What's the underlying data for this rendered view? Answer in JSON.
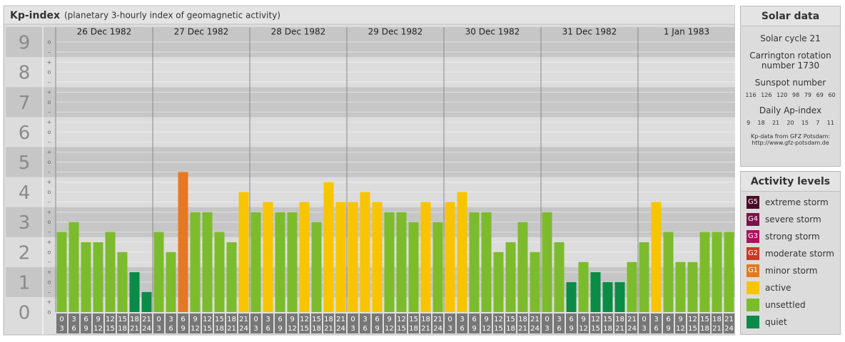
{
  "header": {
    "title": "Kp-index",
    "subtitle": "(planetary 3-hourly index of geomagnetic activity)"
  },
  "chart_data": {
    "type": "bar",
    "days": [
      "26 Dec 1982",
      "27 Dec 1982",
      "28 Dec 1982",
      "29 Dec 1982",
      "30 Dec 1982",
      "31 Dec 1982",
      "1 Jan 1983"
    ],
    "hours": [
      [
        "0",
        "3"
      ],
      [
        "3",
        "6"
      ],
      [
        "6",
        "9"
      ],
      [
        "9",
        "12"
      ],
      [
        "12",
        "15"
      ],
      [
        "15",
        "18"
      ],
      [
        "18",
        "21"
      ],
      [
        "21",
        "24"
      ]
    ],
    "values": [
      2.67,
      3,
      2.33,
      2.33,
      2.67,
      2,
      1.33,
      0.67,
      2.67,
      2,
      4.67,
      3.33,
      3.33,
      2.67,
      2.33,
      4,
      3.33,
      3.67,
      3.33,
      3.33,
      3.67,
      3,
      4.33,
      3.67,
      3.67,
      4,
      3.67,
      3.33,
      3.33,
      3,
      3.67,
      3,
      3.67,
      4,
      3.33,
      3.33,
      2,
      2.33,
      3,
      2,
      3.33,
      2.33,
      1,
      1.67,
      1.33,
      1,
      1,
      1.67,
      2.33,
      3.67,
      2.67,
      1.67,
      1.67,
      2.67,
      2.67,
      2.67
    ],
    "colors": [
      "#7cbc2c",
      "#7cbc2c",
      "#7cbc2c",
      "#7cbc2c",
      "#7cbc2c",
      "#7cbc2c",
      "#0b8c46",
      "#0b8c46",
      "#7cbc2c",
      "#7cbc2c",
      "#e87722",
      "#7cbc2c",
      "#7cbc2c",
      "#7cbc2c",
      "#7cbc2c",
      "#f8c400",
      "#7cbc2c",
      "#f8c400",
      "#7cbc2c",
      "#7cbc2c",
      "#f8c400",
      "#7cbc2c",
      "#f8c400",
      "#f8c400",
      "#f8c400",
      "#f8c400",
      "#f8c400",
      "#7cbc2c",
      "#7cbc2c",
      "#7cbc2c",
      "#f8c400",
      "#7cbc2c",
      "#f8c400",
      "#f8c400",
      "#7cbc2c",
      "#7cbc2c",
      "#7cbc2c",
      "#7cbc2c",
      "#7cbc2c",
      "#7cbc2c",
      "#7cbc2c",
      "#7cbc2c",
      "#0b8c46",
      "#7cbc2c",
      "#0b8c46",
      "#0b8c46",
      "#0b8c46",
      "#7cbc2c",
      "#7cbc2c",
      "#f8c400",
      "#7cbc2c",
      "#7cbc2c",
      "#7cbc2c",
      "#7cbc2c",
      "#7cbc2c",
      "#7cbc2c"
    ],
    "ylim": [
      0,
      9.5
    ],
    "yticks": [
      0,
      1,
      2,
      3,
      4,
      5,
      6,
      7,
      8,
      9
    ],
    "minor_ticks": [
      {
        "value": 0,
        "label": "o"
      },
      {
        "value": 0.33,
        "label": "+"
      },
      {
        "value": 0.67,
        "label": "–"
      },
      {
        "value": 1,
        "label": "o"
      },
      {
        "value": 1.33,
        "label": "+"
      },
      {
        "value": 1.67,
        "label": "–"
      },
      {
        "value": 2,
        "label": "o"
      },
      {
        "value": 2.33,
        "label": "+"
      },
      {
        "value": 2.67,
        "label": "–"
      },
      {
        "value": 3,
        "label": "o"
      },
      {
        "value": 3.33,
        "label": "+"
      },
      {
        "value": 3.67,
        "label": "–"
      },
      {
        "value": 4,
        "label": "o"
      },
      {
        "value": 4.33,
        "label": "+"
      },
      {
        "value": 4.67,
        "label": "–"
      },
      {
        "value": 5,
        "label": "o"
      },
      {
        "value": 5.33,
        "label": "+"
      },
      {
        "value": 5.67,
        "label": "–"
      },
      {
        "value": 6,
        "label": "o"
      },
      {
        "value": 6.33,
        "label": "+"
      },
      {
        "value": 6.67,
        "label": "–"
      },
      {
        "value": 7,
        "label": "o"
      },
      {
        "value": 7.33,
        "label": "+"
      },
      {
        "value": 7.67,
        "label": "–"
      },
      {
        "value": 8,
        "label": "o"
      },
      {
        "value": 8.33,
        "label": "+"
      },
      {
        "value": 8.67,
        "label": "–"
      },
      {
        "value": 9,
        "label": "o"
      }
    ]
  },
  "solar": {
    "title": "Solar data",
    "cycle": "Solar cycle 21",
    "carrington": "Carrington rotation number 1730",
    "sunspot_title": "Sunspot number",
    "sunspot": [
      116,
      126,
      120,
      98,
      79,
      69,
      60
    ],
    "ap_title": "Daily Ap-index",
    "ap": [
      9,
      18,
      21,
      20,
      15,
      7,
      11
    ],
    "source": "Kp-data from GFZ Potsdam:",
    "url": "http://www.gfz-potsdam.de"
  },
  "levels": {
    "title": "Activity levels",
    "items": [
      {
        "badge": "G5",
        "label": "extreme storm",
        "color": "#4a0a24"
      },
      {
        "badge": "G4",
        "label": "severe storm",
        "color": "#7a1248"
      },
      {
        "badge": "G3",
        "label": "strong storm",
        "color": "#a8145e"
      },
      {
        "badge": "G2",
        "label": "moderate storm",
        "color": "#c83a24"
      },
      {
        "badge": "G1",
        "label": "minor storm",
        "color": "#e07a22"
      },
      {
        "label": "active",
        "color": "#f8c400"
      },
      {
        "label": "unsettled",
        "color": "#7cbc2c"
      },
      {
        "label": "quiet",
        "color": "#0b8c46"
      }
    ]
  }
}
